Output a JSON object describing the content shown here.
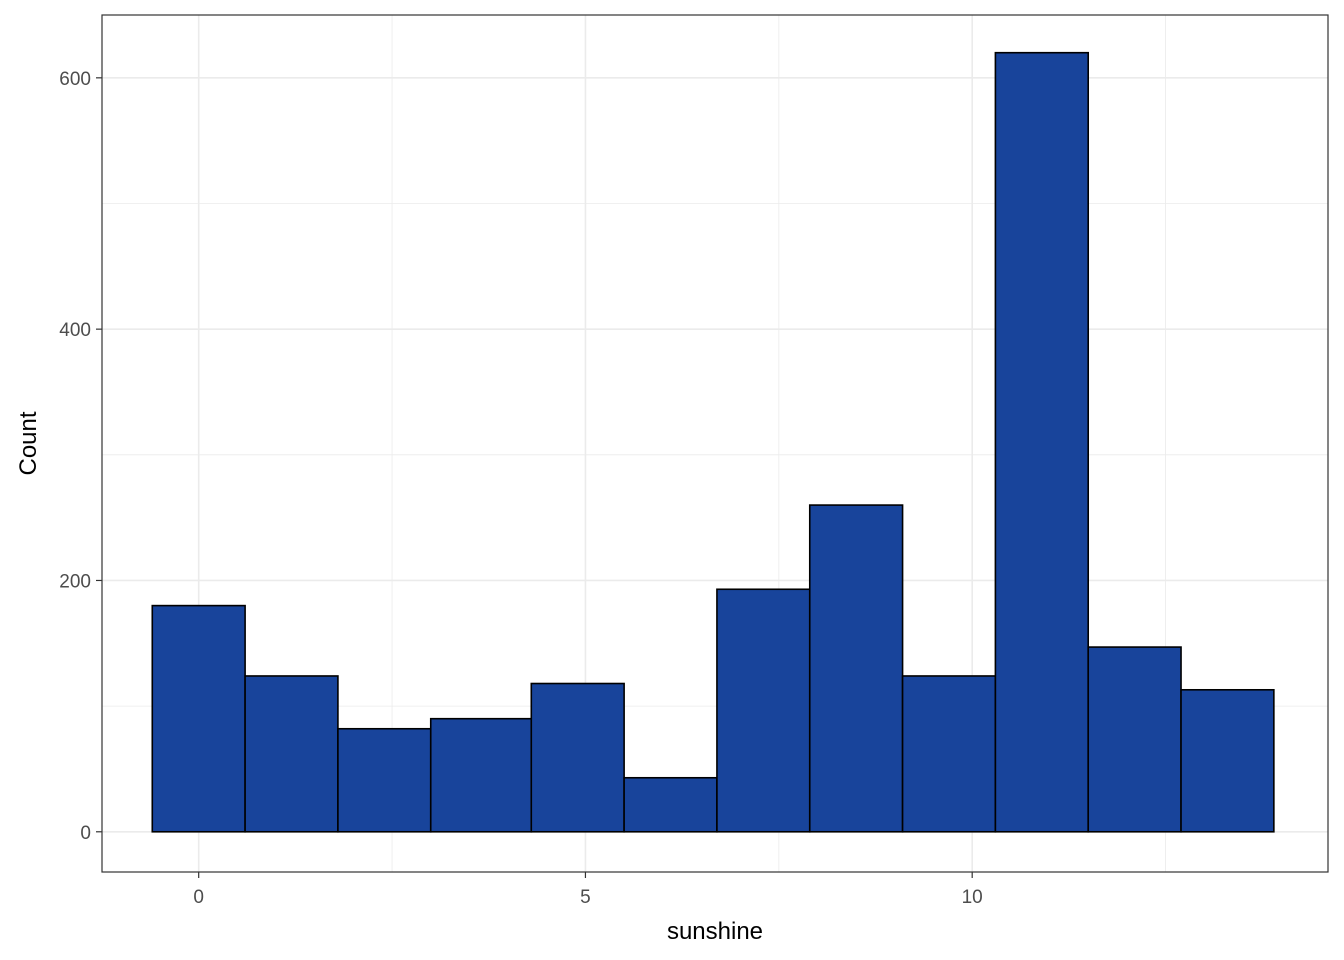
{
  "chart_data": {
    "type": "bar",
    "subtype": "histogram",
    "title": "",
    "xlabel": "sunshine",
    "ylabel": "Count",
    "xlim": [
      -1.25,
      14.6
    ],
    "ylim": [
      -32,
      650
    ],
    "x_ticks": [
      0,
      5,
      10
    ],
    "x_tick_labels": [
      "0",
      "5",
      "10"
    ],
    "y_ticks": [
      0,
      200,
      400,
      600
    ],
    "y_tick_labels": [
      "0",
      "200",
      "400",
      "600"
    ],
    "bin_edges": [
      -0.6,
      0.6,
      1.8,
      3.0,
      4.3,
      5.5,
      6.7,
      7.9,
      9.1,
      10.3,
      11.5,
      12.7,
      13.9
    ],
    "values": [
      180,
      124,
      82,
      90,
      118,
      43,
      193,
      260,
      124,
      620,
      147,
      113
    ],
    "grid": true,
    "legend": "none",
    "colors": {
      "bar_fill": "#18449B",
      "bar_stroke": "#000000",
      "grid": "#EBEBEB",
      "panel_border": "#333333",
      "background": "#FFFFFF"
    }
  }
}
